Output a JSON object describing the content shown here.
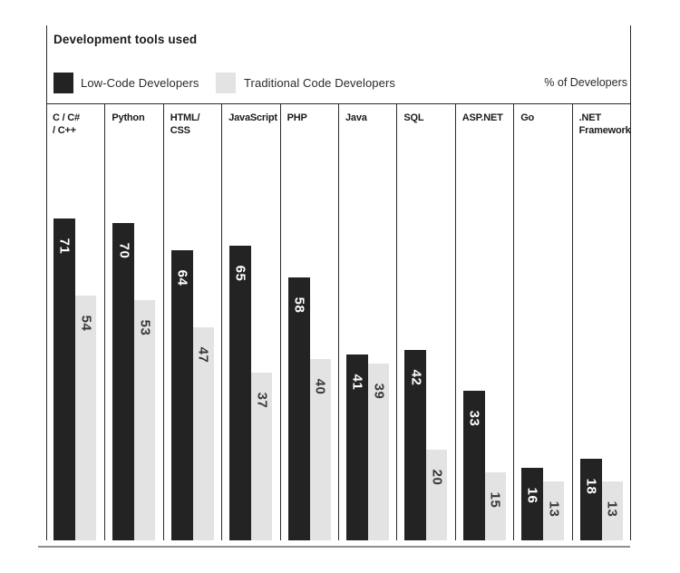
{
  "header": {
    "title": "Development tools used"
  },
  "legend": {
    "items": [
      {
        "label": "Low-Code Developers",
        "color": "#232323"
      },
      {
        "label": "Traditional Code Developers",
        "color": "#e3e3e3"
      }
    ],
    "note": "% of Developers"
  },
  "chart_data": {
    "type": "bar",
    "title": "Development tools used",
    "unit": "% of Developers",
    "categories": [
      "C / C#\n/ C++",
      "Python",
      "HTML/\nCSS",
      "JavaScript",
      "PHP",
      "Java",
      "SQL",
      "ASP.NET",
      "Go",
      ".NET\nFramework"
    ],
    "series": [
      {
        "name": "Low-Code Developers",
        "color": "#232323",
        "label_color": "#ffffff",
        "values": [
          71,
          70,
          64,
          65,
          58,
          41,
          42,
          33,
          16,
          18
        ]
      },
      {
        "name": "Traditional Code Developers",
        "color": "#e3e3e3",
        "label_color": "#383838",
        "values": [
          54,
          53,
          47,
          37,
          40,
          39,
          20,
          15,
          13,
          13
        ]
      }
    ],
    "ylim": [
      0,
      95
    ],
    "grid": false,
    "legend_position": "top",
    "value_labels": "rotated-90-on-bars"
  },
  "colors": {
    "frame_line": "#2b2b2b",
    "bottom_rule": "#8f8f8f",
    "text": "#1b1b1b",
    "background": "#ffffff"
  }
}
